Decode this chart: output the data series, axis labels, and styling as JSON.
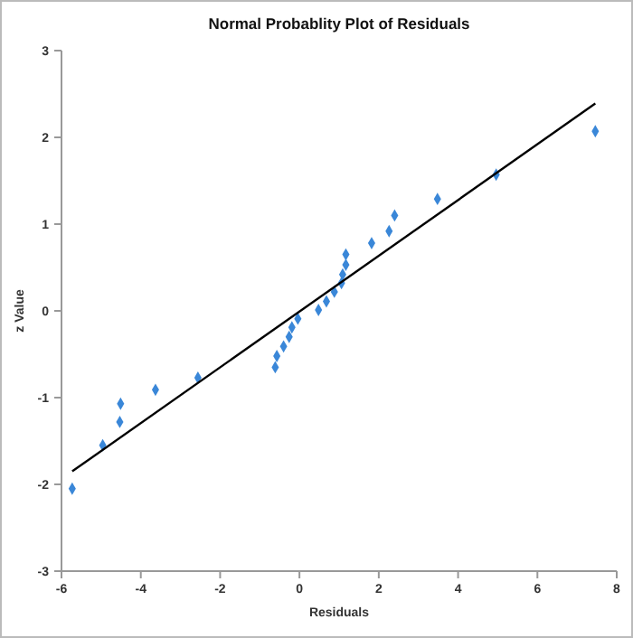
{
  "chart_data": {
    "type": "scatter",
    "title": "Normal Probablity Plot of Residuals",
    "xlabel": "Residuals",
    "ylabel": "z Value",
    "xlim": [
      -6,
      8
    ],
    "xticks": [
      -6,
      -4,
      -2,
      0,
      2,
      4,
      6,
      8
    ],
    "ylim": [
      -3,
      3
    ],
    "yticks": [
      -3,
      -2,
      -1,
      0,
      1,
      2,
      3
    ],
    "grid": false,
    "series": [
      {
        "marker": "diamond",
        "color": "#3a87d8",
        "x": [
          7.46,
          4.96,
          3.48,
          2.4,
          2.26,
          1.82,
          1.17,
          1.17,
          1.09,
          1.06,
          0.88,
          0.68,
          0.48,
          -0.04,
          -0.19,
          -0.26,
          -0.4,
          -0.57,
          -0.61,
          -2.56,
          -3.63,
          -4.51,
          -4.53,
          -4.96,
          -5.73
        ],
        "values": [
          2.07,
          1.57,
          1.29,
          1.1,
          0.92,
          0.78,
          0.65,
          0.53,
          0.42,
          0.32,
          0.22,
          0.11,
          0.01,
          -0.09,
          -0.19,
          -0.3,
          -0.41,
          -0.52,
          -0.65,
          -0.77,
          -0.91,
          -1.07,
          -1.28,
          -1.55,
          -2.05
        ]
      },
      {
        "type": "line",
        "color": "#000000",
        "line_style": "solid",
        "x": [
          -5.73,
          7.46
        ],
        "values": [
          -1.85,
          2.39
        ]
      }
    ]
  }
}
